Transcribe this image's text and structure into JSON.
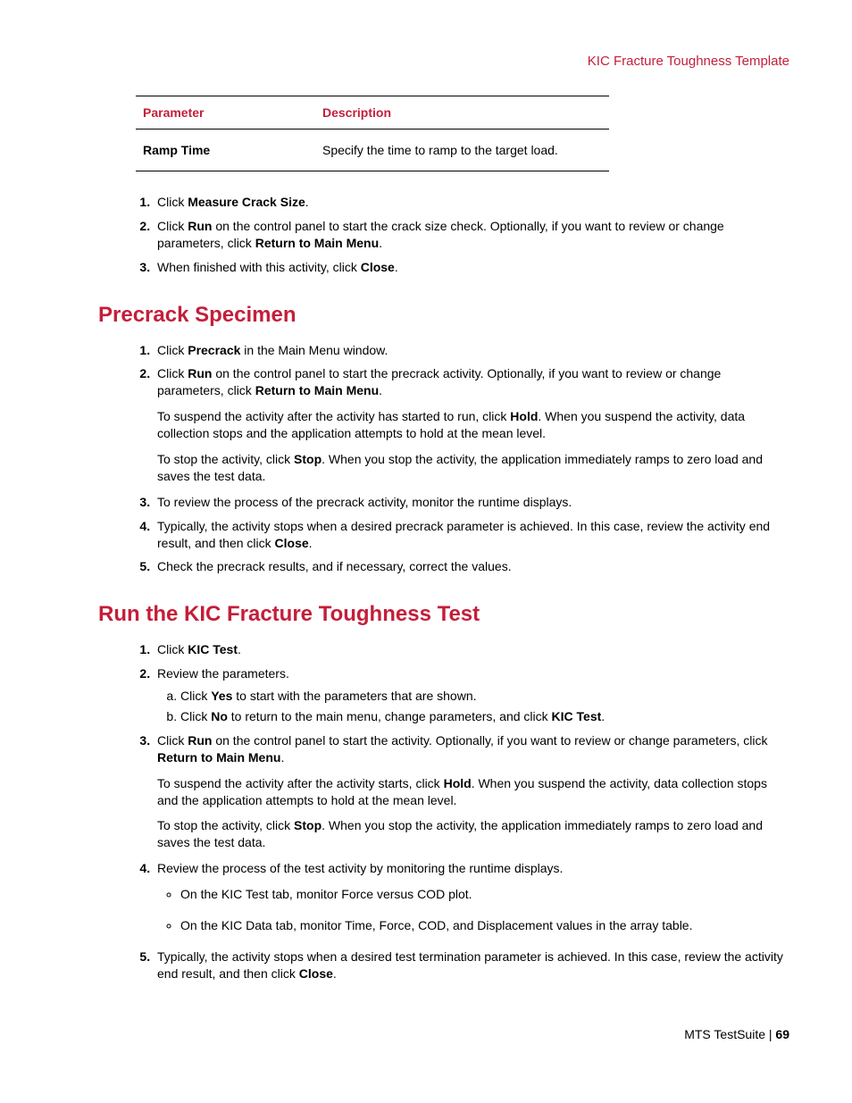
{
  "header": {
    "title": "KIC Fracture Toughness Template"
  },
  "table": {
    "col1": "Parameter",
    "col2": "Description",
    "row1_param": "Ramp Time",
    "row1_desc": "Specify the time to ramp to the target load."
  },
  "intro_steps": {
    "s1a": "Click ",
    "s1b": "Measure Crack Size",
    "s1c": ".",
    "s2a": "Click ",
    "s2b": "Run",
    "s2c": " on the control panel to start the crack size check. Optionally, if you want to review or change parameters, click ",
    "s2d": "Return to Main Menu",
    "s2e": ".",
    "s3a": "When finished with this activity, click ",
    "s3b": "Close",
    "s3c": "."
  },
  "precrack": {
    "heading": "Precrack Specimen",
    "s1a": "Click ",
    "s1b": "Precrack",
    "s1c": " in the Main Menu window.",
    "s2a": "Click ",
    "s2b": "Run",
    "s2c": " on the control panel to start the precrack activity. Optionally, if you want to review or change parameters, click ",
    "s2d": "Return to Main Menu",
    "s2e": ".",
    "s2p1a": "To suspend the activity after the activity has started to run, click ",
    "s2p1b": "Hold",
    "s2p1c": ". When you suspend the activity, data collection stops and the application attempts to hold at the mean level.",
    "s2p2a": "To stop the activity, click ",
    "s2p2b": "Stop",
    "s2p2c": ". When you stop the activity, the application immediately ramps to zero load and saves the test data.",
    "s3": "To review the process of the precrack activity, monitor the runtime displays.",
    "s4a": "Typically, the activity stops when a desired precrack parameter is achieved. In this case, review the activity end result, and then click ",
    "s4b": "Close",
    "s4c": ".",
    "s5": "Check the precrack results, and if necessary, correct the values."
  },
  "runtest": {
    "heading": "Run the KIC Fracture Toughness Test",
    "s1a": "Click ",
    "s1b": "KIC Test",
    "s1c": ".",
    "s2": "Review the parameters.",
    "s2a_a": "Click ",
    "s2a_b": "Yes",
    "s2a_c": " to start with the parameters that are shown.",
    "s2b_a": "Click ",
    "s2b_b": "No",
    "s2b_c": " to return to the main menu, change parameters, and click ",
    "s2b_d": "KIC Test",
    "s2b_e": ".",
    "s3a": "Click ",
    "s3b": "Run",
    "s3c": " on the control panel to start the activity. Optionally, if you want to review or change parameters, click ",
    "s3d": "Return to Main Menu",
    "s3e": ".",
    "s3p1a": "To suspend the activity after the activity starts, click ",
    "s3p1b": "Hold",
    "s3p1c": ". When you suspend the activity, data collection stops and the application attempts to hold at the mean level.",
    "s3p2a": "To stop the activity, click ",
    "s3p2b": "Stop",
    "s3p2c": ". When you stop the activity, the application immediately ramps to zero load and saves the test data.",
    "s4": "Review the process of the test activity by monitoring the runtime displays.",
    "s4b1": "On the KIC Test tab, monitor Force versus COD plot.",
    "s4b2": "On the KIC Data tab, monitor Time, Force, COD, and Displacement values in the array table.",
    "s5a": "Typically, the activity stops when a desired test termination parameter is achieved. In this case, review the activity end result, and then click ",
    "s5b": "Close",
    "s5c": "."
  },
  "footer": {
    "product": "MTS TestSuite | ",
    "page": "69"
  }
}
